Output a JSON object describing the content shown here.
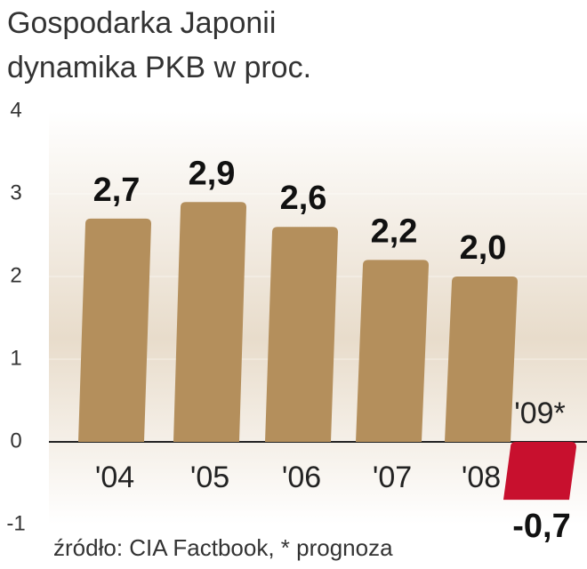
{
  "chart_data": {
    "type": "bar",
    "title": "Gospodarka Japonii",
    "subtitle": "dynamika PKB w proc.",
    "categories": [
      "'04",
      "'05",
      "'06",
      "'07",
      "'08",
      "'09*"
    ],
    "values": [
      2.7,
      2.9,
      2.6,
      2.2,
      2.0,
      -0.7
    ],
    "value_labels": [
      "2,7",
      "2,9",
      "2,6",
      "2,2",
      "2,0",
      "-0,7"
    ],
    "color": "#b48f5c",
    "negative_color": "#c8102e",
    "ylim": [
      -1,
      4
    ],
    "yticks": [
      -1,
      0,
      1,
      2,
      3,
      4
    ],
    "source": "źródło: CIA Factbook, * prognoza"
  }
}
